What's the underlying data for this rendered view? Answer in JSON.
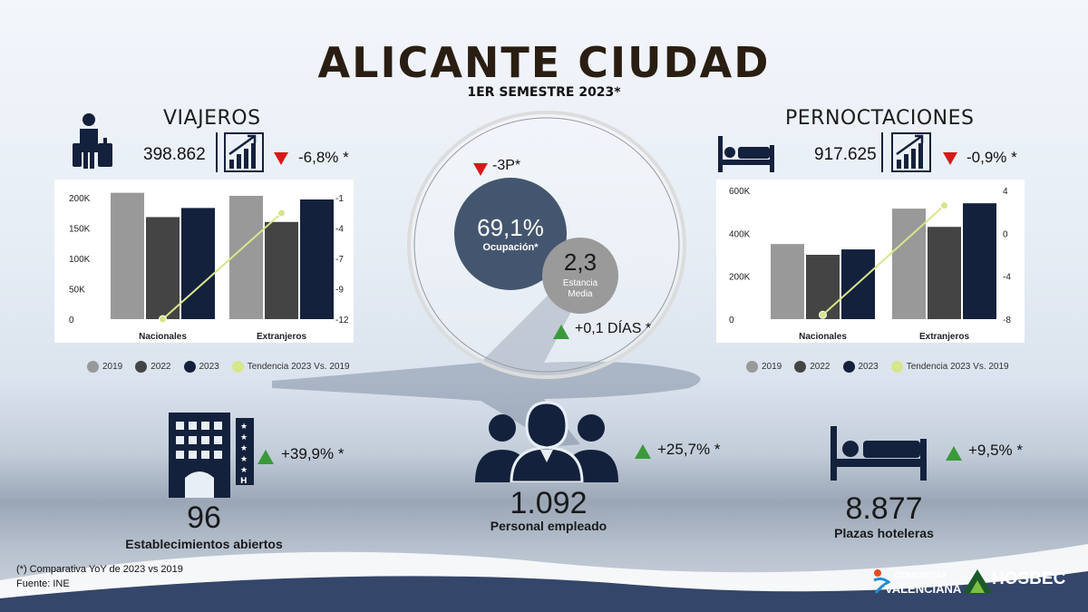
{
  "title": "ALICANTE CIUDAD",
  "subtitle": "1ER SEMESTRE 2023*",
  "colors": {
    "c2019": "#999999",
    "c2022": "#444444",
    "c2023": "#14213d",
    "trend": "#d6e68a",
    "up": "#3a9a3a",
    "down": "#d61a1a",
    "bubble_main": "#44566f",
    "bubble_small": "#9a9a9a"
  },
  "viajeros": {
    "heading": "VIAJEROS",
    "value": "398.862",
    "change": "-6,8% *"
  },
  "pernoctaciones": {
    "heading": "PERNOCTACIONES",
    "value": "917.625",
    "change": "-0,9% *"
  },
  "center": {
    "occ_change": "-3P*",
    "occ_value": "69,1%",
    "occ_label": "Ocupación*",
    "stay_value": "2,3",
    "stay_label_1": "Estancia",
    "stay_label_2": "Media",
    "stay_change": "+0,1 DÍAS *"
  },
  "legend": {
    "l2019": "2019",
    "l2022": "2022",
    "l2023": "2023",
    "ltrend": "Tendencia 2023 Vs. 2019"
  },
  "chart_data": [
    {
      "type": "bar",
      "categories": [
        "Nacionales",
        "Extranjeros"
      ],
      "series": [
        {
          "name": "2019",
          "values": [
            208000,
            203000
          ]
        },
        {
          "name": "2022",
          "values": [
            168000,
            160000
          ]
        },
        {
          "name": "2023",
          "values": [
            183000,
            197000
          ]
        }
      ],
      "trend": {
        "name": "Tendencia 2023 Vs. 2019",
        "values": [
          -12,
          -2.4
        ],
        "axis": "right"
      },
      "ylim": [
        0,
        200000
      ],
      "y_ticks": [
        "0",
        "50K",
        "100K",
        "150K",
        "200K"
      ],
      "y2lim": [
        -12,
        -1
      ],
      "y2_ticks": [
        "-12",
        "-9",
        "-7",
        "-4",
        "-1"
      ]
    },
    {
      "type": "bar",
      "categories": [
        "Nacionales",
        "Extranjeros"
      ],
      "series": [
        {
          "name": "2019",
          "values": [
            350000,
            515000
          ]
        },
        {
          "name": "2022",
          "values": [
            300000,
            430000
          ]
        },
        {
          "name": "2023",
          "values": [
            325000,
            540000
          ]
        }
      ],
      "trend": {
        "name": "Tendencia 2023 Vs. 2019",
        "values": [
          -7.6,
          2.6
        ],
        "axis": "right"
      },
      "ylim": [
        0,
        600000
      ],
      "y_ticks": [
        "0",
        "200K",
        "400K",
        "600K"
      ],
      "y2lim": [
        -8,
        4
      ],
      "y2_ticks": [
        "-8",
        "-4",
        "0",
        "4"
      ]
    }
  ],
  "establecimientos": {
    "value": "96",
    "label": "Establecimientos abiertos",
    "change": "+39,9% *"
  },
  "personal": {
    "value": "1.092",
    "label": "Personal empleado",
    "change": "+25,7% *"
  },
  "plazas": {
    "value": "8.877",
    "label": "Plazas hoteleras",
    "change": "+9,5% *"
  },
  "footnote": {
    "line1": "(*) Comparativa YoY de 2023 vs 2019",
    "line2": "Fuente: INE"
  },
  "logos": {
    "cv1": "COMUNITAT",
    "cv2": "VALENCIANA",
    "hosbec": "HOSBEC"
  },
  "icons": [
    "luggage-icon",
    "growth-chart-icon",
    "bed-icon",
    "hotel-building-icon",
    "people-group-icon",
    "triangle-up-icon",
    "triangle-down-icon"
  ]
}
